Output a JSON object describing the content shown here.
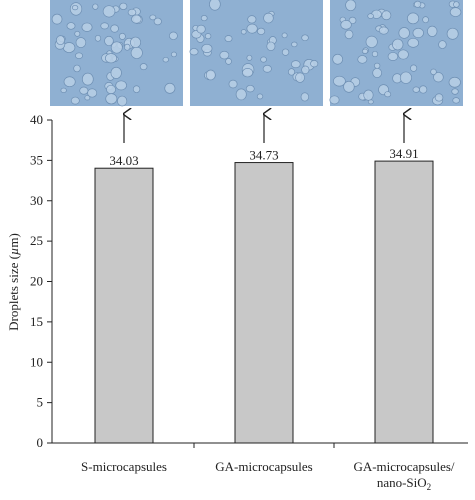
{
  "chart_data": {
    "type": "bar",
    "categories": [
      "S-microcapsules",
      "GA-microcapsules",
      "GA-microcapsules/\nnano-SiO2"
    ],
    "values": [
      34.03,
      34.73,
      34.91
    ],
    "value_labels": [
      "34.03",
      "34.73",
      "34.91"
    ],
    "title": "",
    "xlabel": "",
    "ylabel": "Droplets size (µm)",
    "ylim": [
      0,
      40
    ],
    "yticks": [
      "0",
      "5",
      "10",
      "15",
      "20",
      "25",
      "30",
      "35",
      "40"
    ],
    "grid": false,
    "legend": "none",
    "bar_color": "#c8c8c8",
    "bar_edge_color": "#222222",
    "annotations": [
      "micrograph above each bar with upward arrow"
    ]
  },
  "micrograph_colors": {
    "background": "#8fb0d2",
    "droplet": "#b9d0e6",
    "droplet_edge": "#6e8fb3"
  }
}
